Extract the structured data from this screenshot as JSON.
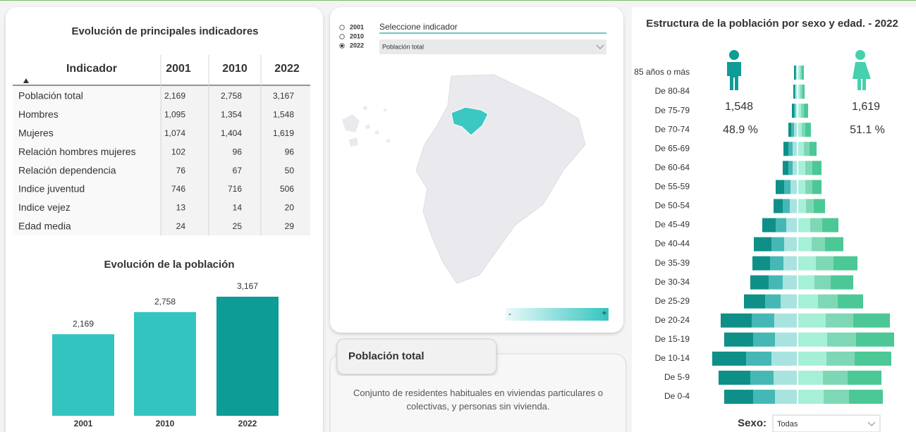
{
  "table_panel": {
    "title": "Evolución de principales indicadores",
    "columns": [
      "Indicador",
      "2001",
      "2010",
      "2022"
    ],
    "rows": [
      [
        "Población total",
        "2,169",
        "2,758",
        "3,167"
      ],
      [
        "Hombres",
        "1,095",
        "1,354",
        "1,548"
      ],
      [
        "Mujeres",
        "1,074",
        "1,404",
        "1,619"
      ],
      [
        "Relación hombres mujeres",
        "102",
        "96",
        "96"
      ],
      [
        "Relación dependencia",
        "76",
        "67",
        "50"
      ],
      [
        "Indice juventud",
        "746",
        "716",
        "506"
      ],
      [
        "Indice vejez",
        "13",
        "14",
        "20"
      ],
      [
        "Edad media",
        "24",
        "25",
        "29"
      ]
    ]
  },
  "chart_data": [
    {
      "type": "bar",
      "title": "Evolución de la población",
      "categories": [
        "2001",
        "2010",
        "2022"
      ],
      "values": [
        2169,
        2758,
        3167
      ],
      "value_labels": [
        "2,169",
        "2,758",
        "3,167"
      ],
      "colors": [
        "#33c4c0",
        "#33c4c0",
        "#0e9c96"
      ]
    },
    {
      "type": "pyramid",
      "title": "Estructura de la población por sexo y edad. - 2022",
      "categories": [
        "85 años o más",
        "De 80-84",
        "De 75-79",
        "De 70-74",
        "De 65-69",
        "De 60-64",
        "De 55-59",
        "De 50-54",
        "De 45-49",
        "De 40-44",
        "De 35-39",
        "De 30-34",
        "De 25-29",
        "De 20-24",
        "De 15-19",
        "De 10-14",
        "De 5-9",
        "De 0-4"
      ],
      "series": [
        {
          "side": "left",
          "color": "#a8e3e0",
          "values": [
            1,
            2,
            2,
            4,
            6,
            6,
            9,
            10,
            15,
            18,
            19,
            20,
            23,
            32,
            31,
            36,
            33,
            31
          ]
        },
        {
          "side": "left",
          "color": "#45b8b5",
          "values": [
            1,
            1,
            2,
            4,
            6,
            6,
            9,
            10,
            15,
            18,
            19,
            20,
            22,
            32,
            31,
            36,
            33,
            31
          ]
        },
        {
          "side": "left",
          "color": "#0e9088",
          "values": [
            2,
            2,
            3,
            4,
            7,
            8,
            12,
            13,
            19,
            25,
            25,
            26,
            30,
            44,
            41,
            48,
            45,
            41
          ]
        },
        {
          "side": "right",
          "color": "#a6f0d8",
          "values": [
            3,
            3,
            4,
            5,
            8,
            10,
            10,
            11,
            17,
            19,
            25,
            23,
            28,
            39,
            41,
            40,
            35,
            36
          ]
        },
        {
          "side": "right",
          "color": "#7fd8b5",
          "values": [
            2,
            3,
            4,
            5,
            8,
            10,
            10,
            11,
            17,
            19,
            25,
            23,
            28,
            39,
            41,
            40,
            35,
            36
          ]
        },
        {
          "side": "right",
          "color": "#4cc896",
          "values": [
            3,
            3,
            6,
            8,
            10,
            13,
            13,
            16,
            23,
            26,
            34,
            32,
            36,
            52,
            54,
            52,
            48,
            48
          ]
        }
      ]
    }
  ],
  "pyramid_header": {
    "male_total": "1,548",
    "female_total": "1,619",
    "male_pct": "48.9 %",
    "female_pct": "51.1 %",
    "sex_label": "Sexo:",
    "sex_filter": "Todas"
  },
  "map_panel": {
    "years": [
      "2001",
      "2010",
      "2022"
    ],
    "selected_year": "2022",
    "selector_label": "Seleccione indicador",
    "selected_indicator": "Población total",
    "legend_min": "-",
    "legend_max": "+"
  },
  "description": {
    "title": "Población total",
    "text": "Conjunto de residentes habituales en viviendas particulares o colectivas, y personas sin vivienda."
  }
}
